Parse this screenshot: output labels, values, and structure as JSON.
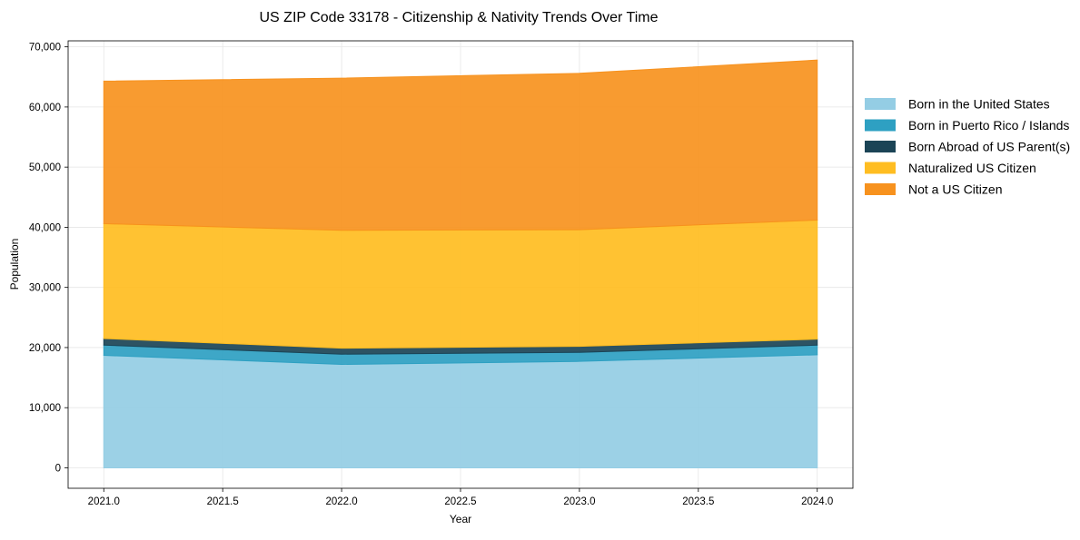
{
  "chart_data": {
    "type": "area",
    "stacked": true,
    "title": "US ZIP Code 33178 - Citizenship & Nativity Trends Over Time",
    "xlabel": "Year",
    "ylabel": "Population",
    "xlim": [
      2020.85,
      2024.15
    ],
    "ylim": [
      -3400,
      71000
    ],
    "grid": true,
    "legend_position": "right",
    "x": [
      2021,
      2022,
      2023,
      2024
    ],
    "x_ticks": [
      2021.0,
      2021.5,
      2022.0,
      2022.5,
      2023.0,
      2023.5,
      2024.0
    ],
    "x_tick_labels": [
      "2021.0",
      "2021.5",
      "2022.0",
      "2022.5",
      "2023.0",
      "2023.5",
      "2024.0"
    ],
    "y_ticks": [
      0,
      10000,
      20000,
      30000,
      40000,
      50000,
      60000,
      70000
    ],
    "y_tick_labels": [
      "0",
      "10,000",
      "20,000",
      "30,000",
      "40,000",
      "50,000",
      "60,000",
      "70,000"
    ],
    "series": [
      {
        "name": "Born in the United States",
        "color": "#94CDE4",
        "values": [
          18700,
          17200,
          17700,
          18800
        ]
      },
      {
        "name": "Born in Puerto Rico / Islands",
        "color": "#2EA0C2",
        "values": [
          1700,
          1700,
          1500,
          1600
        ]
      },
      {
        "name": "Born Abroad of US Parent(s)",
        "color": "#1B4456",
        "values": [
          1100,
          1000,
          1000,
          1000
        ]
      },
      {
        "name": "Naturalized US Citizen",
        "color": "#FFBD21",
        "values": [
          19100,
          19600,
          19400,
          19800
        ]
      },
      {
        "name": "Not a US Citizen",
        "color": "#F7921E",
        "values": [
          23700,
          25300,
          26000,
          26600
        ]
      }
    ]
  }
}
